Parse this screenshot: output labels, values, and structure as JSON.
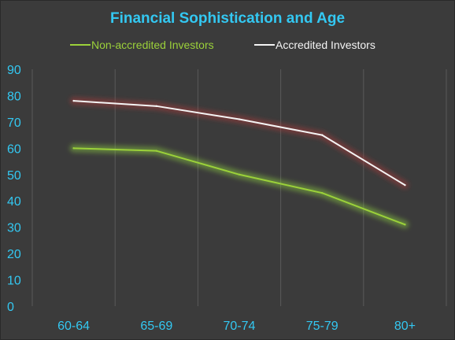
{
  "chart_data": {
    "type": "line",
    "title": "Financial Sophistication  and Age",
    "xlabel": "",
    "ylabel": "",
    "categories": [
      "60-64",
      "65-69",
      "70-74",
      "75-79",
      "80+"
    ],
    "ylim": [
      0,
      90
    ],
    "yticks": [
      0,
      10,
      20,
      30,
      40,
      50,
      60,
      70,
      80,
      90
    ],
    "grid": "vertical",
    "legend_position": "top",
    "series": [
      {
        "name": "Non-accredited Investors",
        "values": [
          60,
          59,
          50,
          43,
          31
        ],
        "color": "#9bd13a",
        "glow_color": "#8fd040"
      },
      {
        "name": "Accredited Investors",
        "values": [
          78,
          76,
          71,
          65,
          46
        ],
        "color": "#f4f4f4",
        "glow_color": "#b23a3a"
      }
    ],
    "colors": {
      "background": "#3b3b3b",
      "text": "#33c8f2",
      "grid": "#5a5a5a"
    }
  }
}
